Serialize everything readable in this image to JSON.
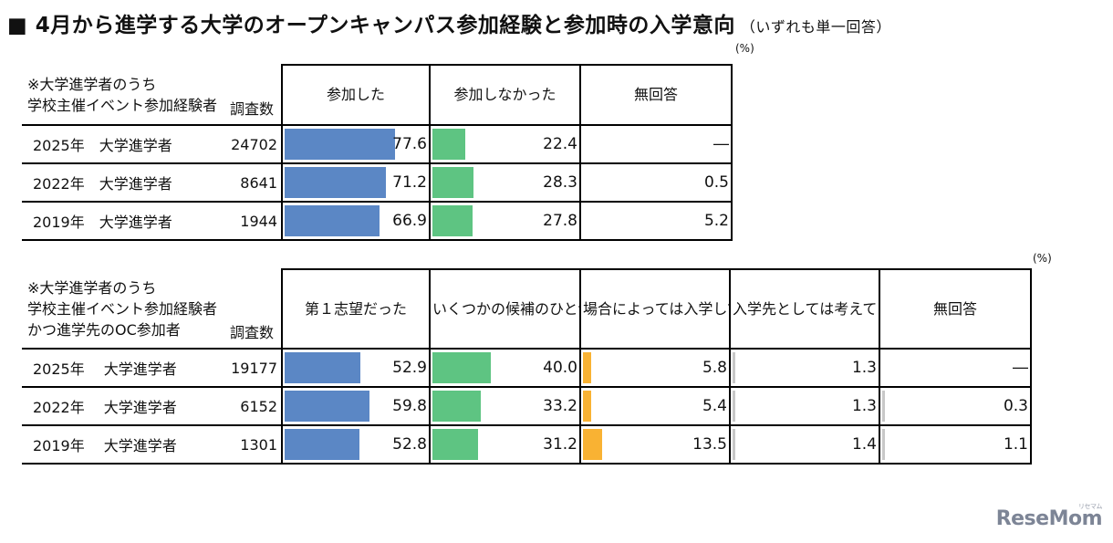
{
  "title": "4月から進学する大学のオープンキャンパス参加経験と参加時の入学意向",
  "title_note": "（いずれも単一回答）",
  "title_marker": "■",
  "unit": "(%)",
  "colors": {
    "bar1": "#5b87c5",
    "bar2": "#5ec482",
    "bar3": "#f9b233",
    "bar4": "#c8c8c8"
  },
  "chart_data": [
    {
      "type": "table",
      "stub_lines": [
        "※大学進学者のうち",
        "学校主催イベント参加経験者"
      ],
      "n_label": "調査数",
      "columns": [
        "参加した",
        "参加しなかった",
        "無回答"
      ],
      "rows": [
        {
          "label": "2025年　大学進学者",
          "n": "24702",
          "values": [
            "77.6",
            "22.4",
            "―"
          ]
        },
        {
          "label": "2022年　大学進学者",
          "n": "8641",
          "values": [
            "71.2",
            "28.3",
            "0.5"
          ]
        },
        {
          "label": "2019年　大学進学者",
          "n": "1944",
          "values": [
            "66.9",
            "27.8",
            "5.2"
          ]
        }
      ]
    },
    {
      "type": "table",
      "stub_lines": [
        "※大学進学者のうち",
        "学校主催イベント参加経験者",
        "かつ進学先のOC参加者"
      ],
      "n_label": "調査数",
      "columns": [
        "第１志望だった",
        "いくつかの候補のひとつだった",
        "場合によっては入学してもいいかなというくらいだった",
        "入学先としては考えていなかった",
        "無回答"
      ],
      "rows": [
        {
          "label": "2025年　 大学進学者",
          "n": "19177",
          "values": [
            "52.9",
            "40.0",
            "5.8",
            "1.3",
            "―"
          ]
        },
        {
          "label": "2022年　 大学進学者",
          "n": "6152",
          "values": [
            "59.8",
            "33.2",
            "5.4",
            "1.3",
            "0.3"
          ]
        },
        {
          "label": "2019年　 大学進学者",
          "n": "1301",
          "values": [
            "52.8",
            "31.2",
            "13.5",
            "1.4",
            "1.1"
          ]
        }
      ]
    }
  ],
  "logo": {
    "text": "ReseMom",
    "small": "リセマム"
  }
}
